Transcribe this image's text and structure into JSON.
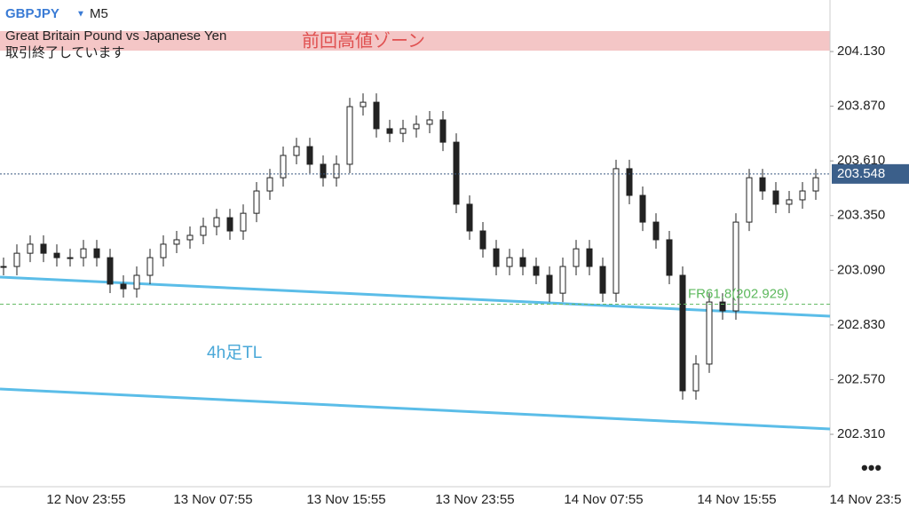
{
  "header": {
    "symbol": "GBPJPY",
    "timeframe": "M5",
    "description": "Great Britain Pound vs Japanese Yen",
    "status": "取引終了しています"
  },
  "annotations": {
    "zone": "前回高値ゾーン",
    "trendline": "4h足TL",
    "fib": {
      "label": "FR61.8(202.929)",
      "value": 202.929
    }
  },
  "chart_data": {
    "type": "candlestick",
    "ylim": [
      202.061,
      204.375
    ],
    "yticks": [
      {
        "value": 204.13,
        "label": "204.130"
      },
      {
        "value": 203.87,
        "label": "203.870"
      },
      {
        "value": 203.61,
        "label": "203.610"
      },
      {
        "value": 203.35,
        "label": "203.350"
      },
      {
        "value": 203.09,
        "label": "203.090"
      },
      {
        "value": 202.83,
        "label": "202.830"
      },
      {
        "value": 202.57,
        "label": "202.570"
      },
      {
        "value": 202.31,
        "label": "202.310"
      }
    ],
    "xticks": [
      "12 Nov 23:55",
      "13 Nov 07:55",
      "13 Nov 15:55",
      "13 Nov 23:55",
      "14 Nov 07:55",
      "14 Nov 15:55",
      "14 Nov 23:5"
    ],
    "current_price": {
      "value": 203.548,
      "label": "203.548"
    },
    "color": "#222222",
    "values": [
      203.108,
      203.171,
      203.214,
      203.171,
      203.15,
      203.15,
      203.192,
      203.15,
      203.024,
      203.002,
      203.066,
      203.15,
      203.214,
      203.235,
      203.256,
      203.298,
      203.34,
      203.277,
      203.361,
      203.467,
      203.53,
      203.636,
      203.678,
      203.594,
      203.53,
      203.594,
      203.868,
      203.889,
      203.763,
      203.741,
      203.763,
      203.784,
      203.805,
      203.699,
      203.404,
      203.277,
      203.192,
      203.108,
      203.15,
      203.108,
      203.066,
      202.981,
      203.108,
      203.192,
      203.108,
      202.981,
      203.573,
      203.446,
      203.319,
      203.235,
      203.066,
      202.517,
      202.644,
      202.939,
      202.897,
      203.319,
      203.53,
      203.467,
      203.404,
      203.425,
      203.467,
      203.53
    ]
  }
}
